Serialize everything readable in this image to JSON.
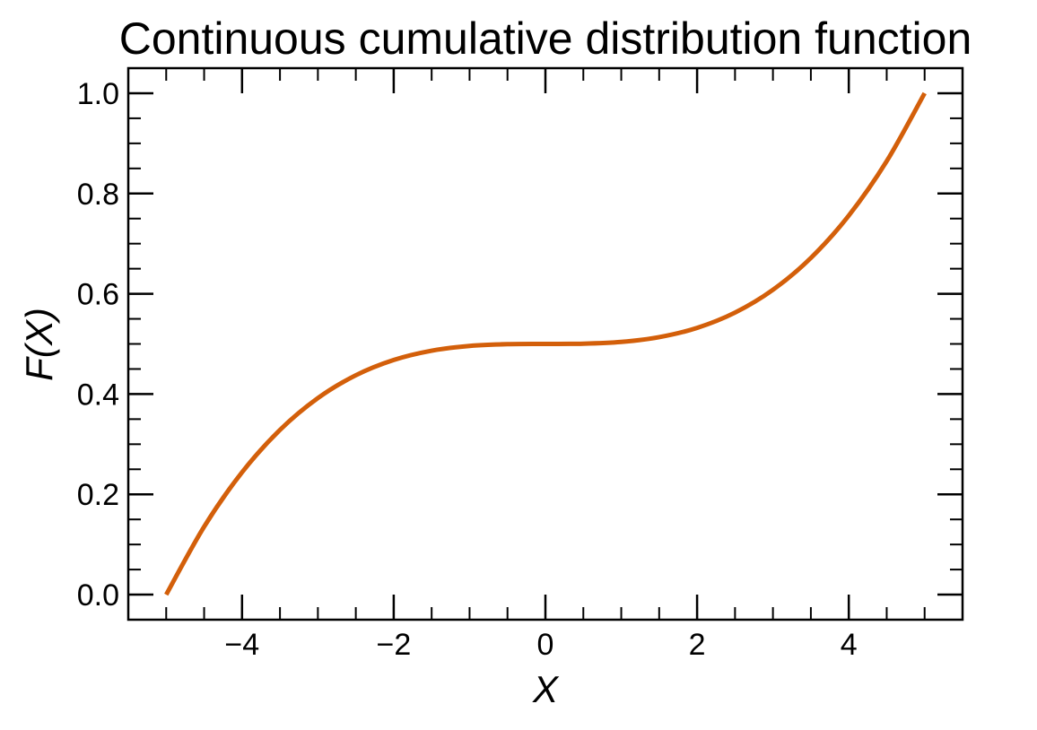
{
  "chart_data": {
    "type": "line",
    "title": "Continuous cumulative distribution function",
    "xlabel": "X",
    "ylabel": "F(X)",
    "xlim": [
      -5.5,
      5.5
    ],
    "ylim": [
      -0.05,
      1.05
    ],
    "grid": false,
    "x_ticks": [
      {
        "value": -4,
        "label": "−4"
      },
      {
        "value": -2,
        "label": "−2"
      },
      {
        "value": 0,
        "label": "0"
      },
      {
        "value": 2,
        "label": "2"
      },
      {
        "value": 4,
        "label": "4"
      }
    ],
    "y_ticks": [
      {
        "value": 0.0,
        "label": "0.0"
      },
      {
        "value": 0.2,
        "label": "0.2"
      },
      {
        "value": 0.4,
        "label": "0.4"
      },
      {
        "value": 0.6,
        "label": "0.6"
      },
      {
        "value": 0.8,
        "label": "0.8"
      },
      {
        "value": 1.0,
        "label": "1.0"
      }
    ],
    "x_minor_step": 0.5,
    "y_minor_step": 0.05,
    "series": [
      {
        "color": "#d35f0a",
        "x": [
          -5,
          -4.5,
          -4,
          -3.5,
          -3,
          -2.5,
          -2,
          -1.5,
          -1,
          -0.5,
          0,
          0.5,
          1,
          1.5,
          2,
          2.5,
          3,
          3.5,
          4,
          4.5,
          5
        ],
        "y": [
          0.0,
          0.1355,
          0.244,
          0.3285,
          0.392,
          0.4375,
          0.468,
          0.4865,
          0.496,
          0.4995,
          0.5,
          0.5005,
          0.504,
          0.5135,
          0.532,
          0.5625,
          0.608,
          0.6715,
          0.756,
          0.8645,
          1.0
        ]
      }
    ]
  }
}
